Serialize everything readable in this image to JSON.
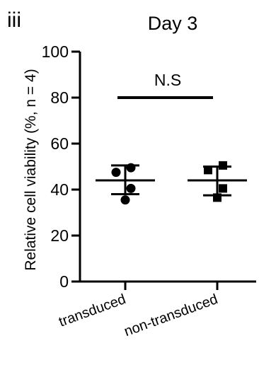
{
  "panel_label": "iii",
  "chart_data": {
    "type": "scatter",
    "title": "Day 3",
    "xlabel": "",
    "ylabel": "Relative cell viability (%, n = 4)",
    "ylim": [
      0,
      100
    ],
    "yticks": [
      0,
      20,
      40,
      60,
      80,
      100
    ],
    "grid": false,
    "categories": [
      "transduced",
      "non-transduced"
    ],
    "series": [
      {
        "category": "transduced",
        "marker": "circle",
        "points": [
          49.5,
          47.5,
          40.5,
          35.5
        ],
        "mean": 44,
        "error_upper": 50.5,
        "error_lower": 38
      },
      {
        "category": "non-transduced",
        "marker": "square",
        "points": [
          50.5,
          48.5,
          40.5,
          36.5
        ],
        "mean": 44,
        "error_upper": 50,
        "error_lower": 37.5
      }
    ],
    "annotations": [
      {
        "text": "N.S",
        "type": "significance_bar",
        "y": 80,
        "between": [
          "transduced",
          "non-transduced"
        ]
      }
    ],
    "color": "#000000"
  }
}
